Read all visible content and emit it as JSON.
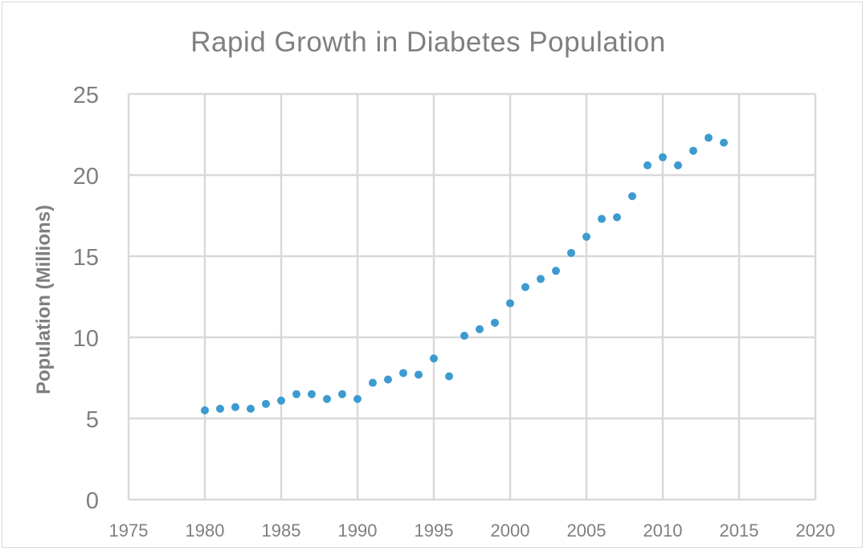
{
  "chart_data": {
    "type": "scatter",
    "title": "Rapid Growth in Diabetes  Population",
    "xlabel": "",
    "ylabel": "Population (Millions)",
    "xlim": [
      1975,
      2020
    ],
    "ylim": [
      0,
      25
    ],
    "x_ticks": [
      1975,
      1980,
      1985,
      1990,
      1995,
      2000,
      2005,
      2010,
      2015,
      2020
    ],
    "y_ticks": [
      0,
      5,
      10,
      15,
      20,
      25
    ],
    "grid": true,
    "legend": "none",
    "colors": {
      "marker": "#3d9bd0",
      "grid": "#d9d9d9",
      "text": "#7f7f7f"
    },
    "series": [
      {
        "x": [
          1980,
          1981,
          1982,
          1983,
          1984,
          1985,
          1986,
          1987,
          1988,
          1989,
          1990,
          1991,
          1992,
          1993,
          1994,
          1995,
          1996,
          1997,
          1998,
          1999,
          2000,
          2001,
          2002,
          2003,
          2004,
          2005,
          2006,
          2007,
          2008,
          2009,
          2010,
          2011,
          2012,
          2013,
          2014
        ],
        "y": [
          5.5,
          5.6,
          5.7,
          5.6,
          5.9,
          6.1,
          6.5,
          6.5,
          6.2,
          6.5,
          6.2,
          7.2,
          7.4,
          7.8,
          7.7,
          8.7,
          7.6,
          10.1,
          10.5,
          10.9,
          12.1,
          13.1,
          13.6,
          14.1,
          15.2,
          16.2,
          17.3,
          17.4,
          18.7,
          20.6,
          21.1,
          20.6,
          21.5,
          22.3,
          22.0
        ]
      }
    ]
  }
}
